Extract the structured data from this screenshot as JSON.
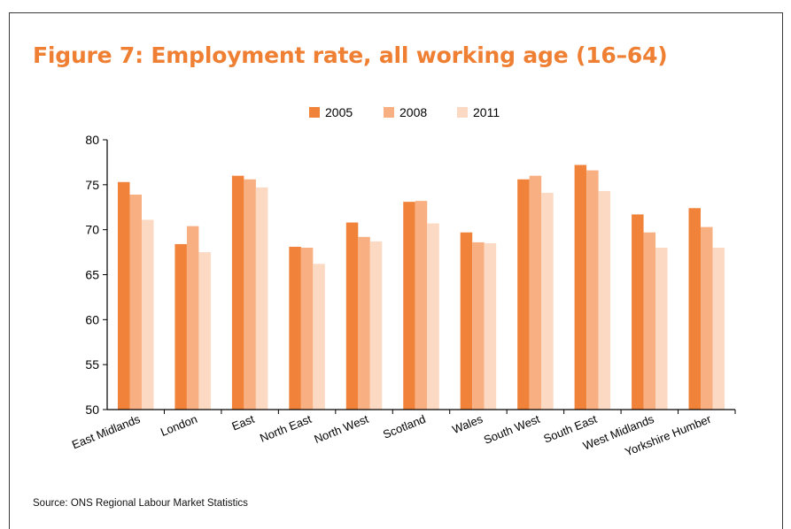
{
  "page": {
    "title": "Figure 7: Employment rate, all working age (16–64)",
    "source": "Source: ONS Regional Labour Market Statistics"
  },
  "chart_data": {
    "type": "bar",
    "title": "Figure 7: Employment rate, all working age (16–64)",
    "xlabel": "",
    "ylabel": "",
    "ylim": [
      50,
      80
    ],
    "yticks": [
      50,
      55,
      60,
      65,
      70,
      75,
      80
    ],
    "grid": false,
    "legend_position": "top-center",
    "categories": [
      "East Midlands",
      "London",
      "East",
      "North East",
      "North West",
      "Scotland",
      "Wales",
      "South West",
      "South East",
      "West Midlands",
      "Yorkshire Humber"
    ],
    "series": [
      {
        "name": "2005",
        "color": "#f0823a",
        "values": [
          75.3,
          68.4,
          76.0,
          68.1,
          70.8,
          73.1,
          69.7,
          75.6,
          77.2,
          71.7,
          72.4
        ]
      },
      {
        "name": "2008",
        "color": "#f8b083",
        "values": [
          73.9,
          70.4,
          75.6,
          68.0,
          69.2,
          73.2,
          68.6,
          76.0,
          76.6,
          69.7,
          70.3
        ]
      },
      {
        "name": "2011",
        "color": "#fcd9c2",
        "values": [
          71.1,
          67.5,
          74.7,
          66.2,
          68.7,
          70.7,
          68.5,
          74.1,
          74.3,
          68.0,
          68.0
        ]
      }
    ]
  }
}
